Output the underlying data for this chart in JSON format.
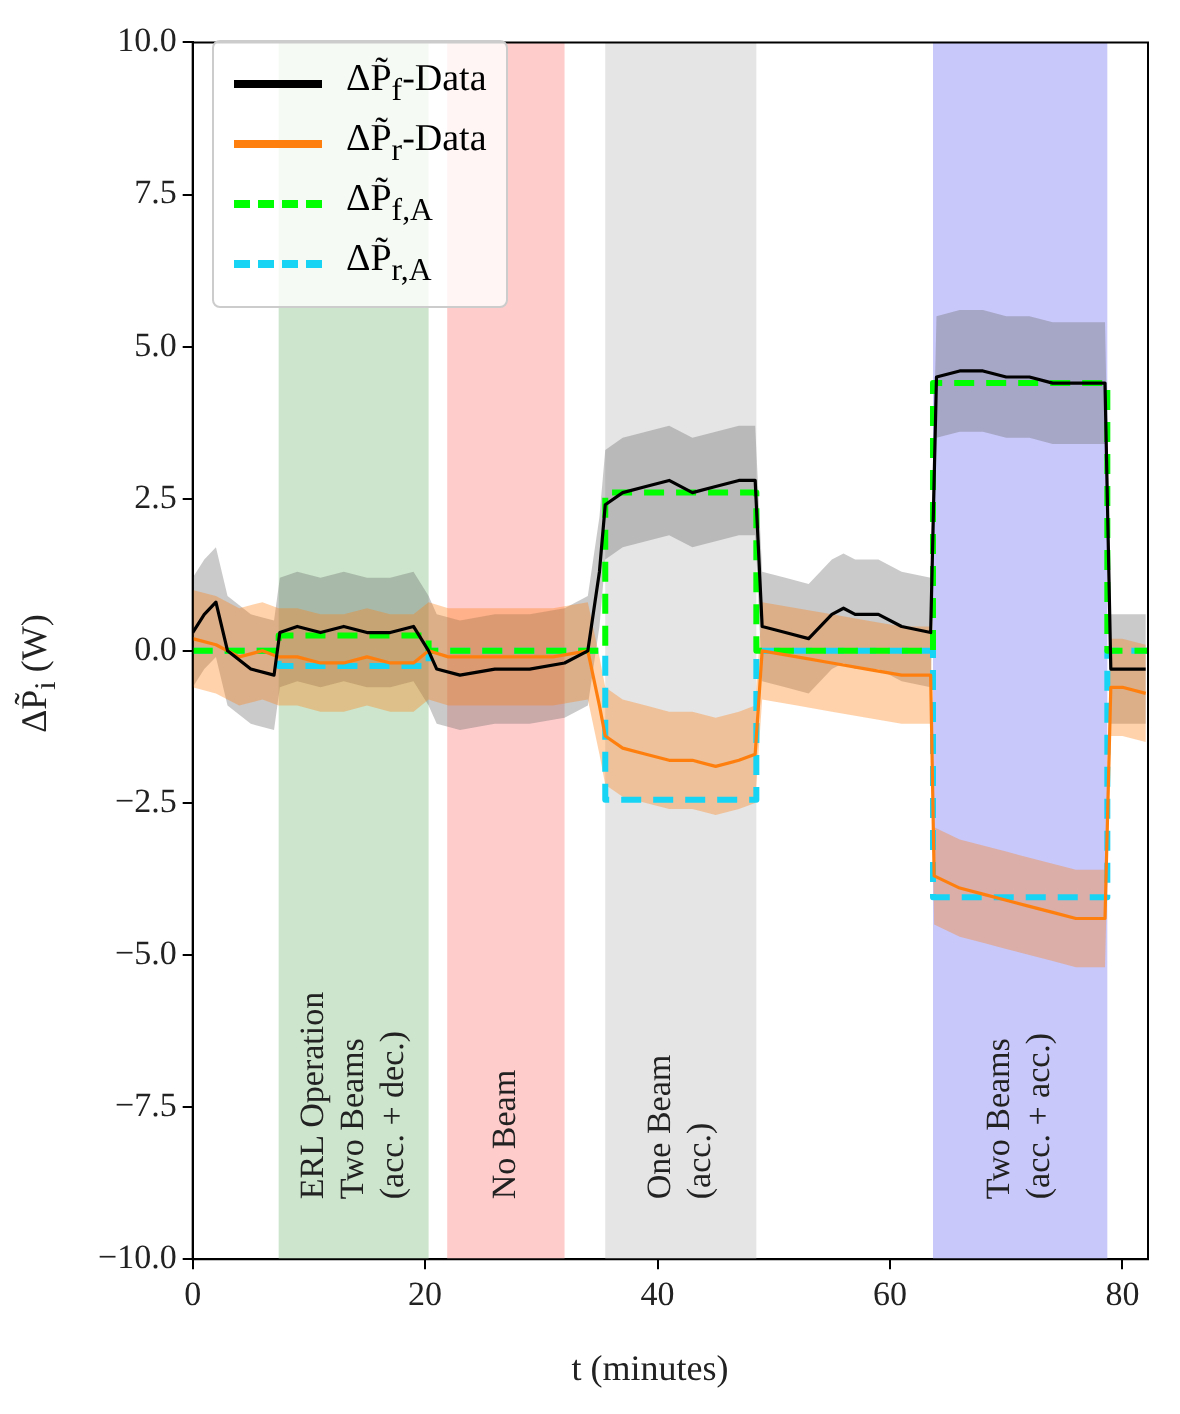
{
  "chart_data": {
    "type": "line",
    "xlabel": "t (minutes)",
    "ylabel": "ΔP̃$_{i}$ (W)",
    "xlim": [
      0,
      82.2
    ],
    "xticks": [
      0,
      20,
      40,
      60,
      80
    ],
    "ylim": [
      -10,
      10
    ],
    "yticks": [
      {
        "value": -10,
        "label": "−10.0"
      },
      {
        "value": -7.5,
        "label": "−7.5"
      },
      {
        "value": -5,
        "label": "−5.0"
      },
      {
        "value": -2.5,
        "label": "−2.5"
      },
      {
        "value": 0,
        "label": "0.0"
      },
      2.5,
      {
        "value": 5,
        "label": "5.0"
      },
      7.5,
      {
        "value": 10,
        "label": "10.0"
      }
    ],
    "grid": false,
    "legend": "top left",
    "marker": "none",
    "series": [
      {
        "name": "ΔP̃$_{f}$-Data",
        "color": "#000000",
        "line_style": "solid",
        "x": [
          0,
          1,
          2,
          3,
          5,
          7,
          7.5,
          9,
          11,
          13,
          15,
          17,
          19,
          20.3,
          21,
          23,
          26,
          29,
          32,
          34,
          35,
          35.5,
          37,
          39,
          41,
          43,
          45,
          47,
          48.4,
          49,
          51,
          53,
          55,
          56,
          57,
          59,
          61,
          63.5,
          64,
          66,
          68,
          70,
          72,
          74,
          76,
          78.5,
          79,
          80,
          82
        ],
        "values": [
          0.3,
          0.6,
          0.8,
          0.0,
          -0.3,
          -0.4,
          0.3,
          0.4,
          0.3,
          0.4,
          0.3,
          0.3,
          0.4,
          0.0,
          -0.3,
          -0.4,
          -0.3,
          -0.3,
          -0.2,
          0.0,
          1.3,
          2.4,
          2.6,
          2.7,
          2.8,
          2.6,
          2.7,
          2.8,
          2.8,
          0.4,
          0.3,
          0.2,
          0.6,
          0.7,
          0.6,
          0.6,
          0.4,
          0.3,
          4.5,
          4.6,
          4.6,
          4.5,
          4.5,
          4.4,
          4.4,
          4.4,
          -0.3,
          -0.3,
          -0.3
        ],
        "lower": [
          -0.6,
          -0.3,
          -0.1,
          -0.9,
          -1.2,
          -1.3,
          -0.6,
          -0.5,
          -0.6,
          -0.5,
          -0.6,
          -0.6,
          -0.5,
          -0.9,
          -1.2,
          -1.3,
          -1.2,
          -1.2,
          -1.1,
          -0.9,
          0.4,
          1.5,
          1.7,
          1.8,
          1.9,
          1.7,
          1.8,
          1.9,
          1.9,
          -0.5,
          -0.6,
          -0.7,
          -0.3,
          -0.2,
          -0.3,
          -0.3,
          -0.5,
          -0.6,
          3.5,
          3.6,
          3.6,
          3.5,
          3.5,
          3.4,
          3.4,
          3.4,
          -1.2,
          -1.2,
          -1.2
        ],
        "upper": [
          1.2,
          1.5,
          1.7,
          0.9,
          0.6,
          0.5,
          1.2,
          1.3,
          1.2,
          1.3,
          1.2,
          1.2,
          1.3,
          0.9,
          0.6,
          0.5,
          0.6,
          0.6,
          0.7,
          0.9,
          2.2,
          3.3,
          3.5,
          3.6,
          3.7,
          3.5,
          3.6,
          3.7,
          3.7,
          1.3,
          1.2,
          1.1,
          1.5,
          1.6,
          1.5,
          1.5,
          1.3,
          1.2,
          5.5,
          5.6,
          5.6,
          5.5,
          5.5,
          5.4,
          5.4,
          5.4,
          0.6,
          0.6,
          0.6
        ]
      },
      {
        "name": "ΔP̃$_{r}$-Data",
        "color": "#ff7f0e",
        "line_style": "solid",
        "x": [
          0,
          2,
          4,
          6,
          7.4,
          9,
          11,
          13,
          15,
          17,
          19,
          20.3,
          22,
          25,
          28,
          31,
          34,
          35,
          35.5,
          37,
          39,
          41,
          43,
          45,
          47,
          48.4,
          49,
          52,
          55,
          58,
          61,
          63.5,
          63.8,
          66,
          68,
          70,
          72,
          74,
          76,
          78.5,
          79,
          80,
          82
        ],
        "values": [
          0.2,
          0.1,
          -0.1,
          0.0,
          -0.1,
          -0.1,
          -0.2,
          -0.2,
          -0.1,
          -0.2,
          -0.2,
          0.0,
          -0.1,
          -0.1,
          -0.1,
          -0.1,
          0.0,
          -0.9,
          -1.4,
          -1.6,
          -1.7,
          -1.8,
          -1.8,
          -1.9,
          -1.8,
          -1.7,
          0.0,
          -0.1,
          -0.2,
          -0.3,
          -0.4,
          -0.4,
          -3.7,
          -3.9,
          -4.0,
          -4.1,
          -4.2,
          -4.3,
          -4.4,
          -4.4,
          -0.6,
          -0.6,
          -0.7
        ],
        "lower": [
          -0.6,
          -0.7,
          -0.9,
          -0.8,
          -0.9,
          -0.9,
          -1.0,
          -1.0,
          -0.9,
          -1.0,
          -1.0,
          -0.8,
          -0.9,
          -0.9,
          -0.9,
          -0.9,
          -0.8,
          -1.7,
          -2.2,
          -2.4,
          -2.5,
          -2.6,
          -2.6,
          -2.7,
          -2.6,
          -2.5,
          -0.8,
          -0.9,
          -1.0,
          -1.1,
          -1.2,
          -1.2,
          -4.5,
          -4.7,
          -4.8,
          -4.9,
          -5.0,
          -5.1,
          -5.2,
          -5.2,
          -1.4,
          -1.4,
          -1.5
        ],
        "upper": [
          1.0,
          0.9,
          0.7,
          0.8,
          0.7,
          0.7,
          0.6,
          0.6,
          0.7,
          0.6,
          0.6,
          0.8,
          0.7,
          0.7,
          0.7,
          0.7,
          0.8,
          -0.1,
          -0.6,
          -0.8,
          -0.9,
          -1.0,
          -1.0,
          -1.1,
          -1.0,
          -0.9,
          0.8,
          0.7,
          0.6,
          0.5,
          0.4,
          0.4,
          -2.9,
          -3.1,
          -3.2,
          -3.3,
          -3.4,
          -3.5,
          -3.6,
          -3.6,
          0.2,
          0.2,
          0.1
        ]
      },
      {
        "name": "ΔP̃$_{f,A}$",
        "type": "step",
        "color": "#00ff00",
        "line_style": "dashed",
        "x": [
          0,
          7.4,
          20.3,
          35.5,
          48.5,
          63.7,
          78.7,
          82.2
        ],
        "values": [
          0,
          0.25,
          0,
          2.6,
          0,
          4.4,
          0,
          0
        ]
      },
      {
        "name": "ΔP̃$_{r,A}$",
        "type": "step",
        "color": "#17d4f5",
        "line_style": "dashed",
        "x": [
          0,
          7.4,
          20.3,
          35.5,
          48.5,
          63.7,
          78.7,
          82.2
        ],
        "values": [
          0,
          -0.25,
          0,
          -2.45,
          0,
          -4.05,
          0,
          0
        ]
      }
    ],
    "bands": [
      {
        "axis": "x",
        "from": 7.4,
        "to": 20.3,
        "label": "ERL Operation\nTwo Beams\n(acc. + dec.)",
        "color": "#cce5cc"
      },
      {
        "axis": "x",
        "from": 21.9,
        "to": 32.0,
        "label": "No Beam",
        "color": "#ffcccc"
      },
      {
        "axis": "x",
        "from": 35.5,
        "to": 48.5,
        "label": "One Beam\n(acc.)",
        "color": "#e5e5e5"
      },
      {
        "axis": "x",
        "from": 63.7,
        "to": 78.7,
        "label": "Two Beams\n(acc. + acc.)",
        "color": "#c8c8fa"
      }
    ]
  }
}
